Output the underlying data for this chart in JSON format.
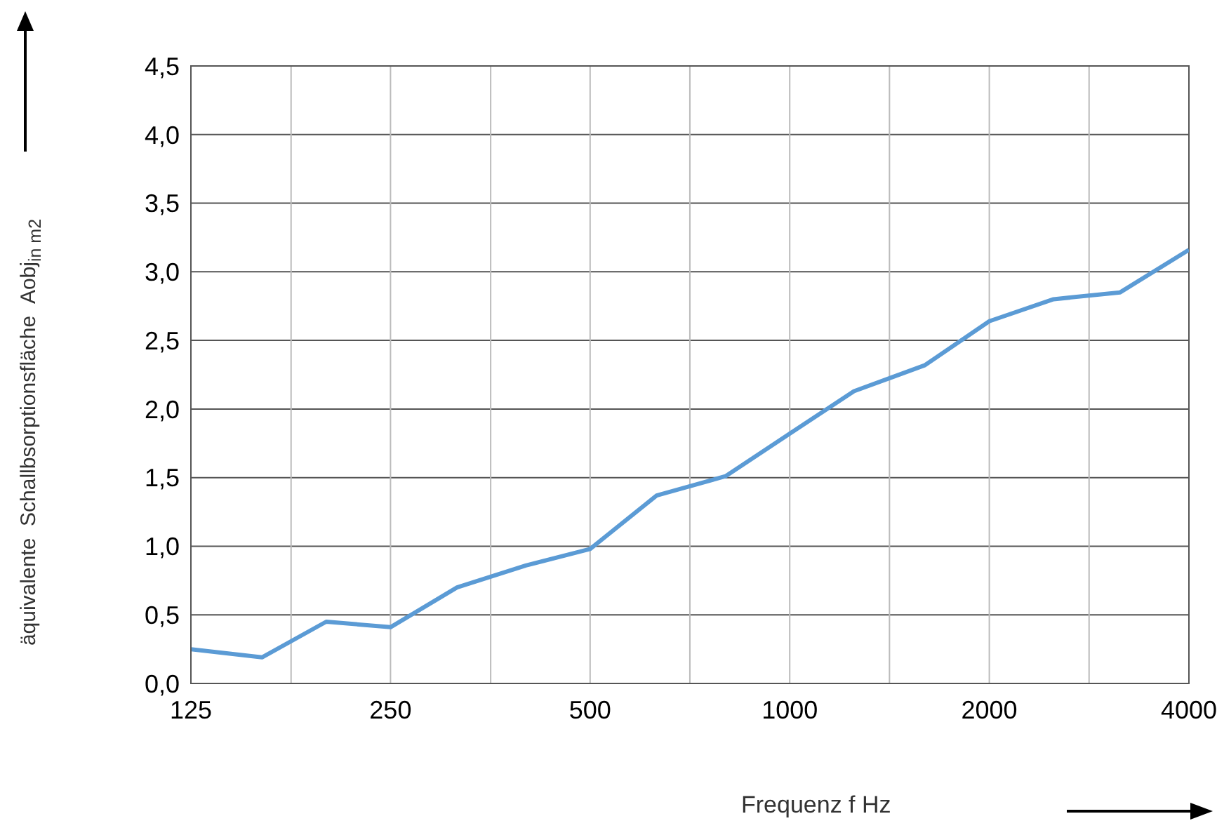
{
  "chart_data": {
    "type": "line",
    "xlabel": "Frequenz f Hz",
    "ylabel": "äquivalente  Schallbsorptionsfläche  Aobj$_{in m2}$",
    "x": [
      125,
      160,
      200,
      250,
      315,
      400,
      500,
      630,
      800,
      1000,
      1250,
      1600,
      2000,
      2500,
      3150,
      4000
    ],
    "series": [
      {
        "color": "#5b9bd5",
        "values": [
          0.25,
          0.19,
          0.45,
          0.41,
          0.7,
          0.86,
          0.98,
          1.37,
          1.51,
          1.82,
          2.13,
          2.32,
          2.64,
          2.8,
          2.85,
          3.16
        ]
      }
    ],
    "log": "x",
    "xlim": [
      125,
      4000
    ],
    "xticks": [
      125,
      {
        "value": 177,
        "label": null
      },
      250,
      {
        "value": 354,
        "label": null
      },
      500,
      {
        "value": 707,
        "label": null
      },
      1000,
      {
        "value": 1414,
        "label": null
      },
      2000,
      {
        "value": 2828,
        "label": null
      },
      4000
    ],
    "ylim": [
      0,
      4.5
    ],
    "yticks": [
      {
        "value": 0,
        "label": "0,0"
      },
      {
        "value": 0.5,
        "label": "0,5"
      },
      {
        "value": 1,
        "label": "1,0"
      },
      {
        "value": 1.5,
        "label": "1,5"
      },
      {
        "value": 2,
        "label": "2,0"
      },
      {
        "value": 2.5,
        "label": "2,5"
      },
      {
        "value": 3,
        "label": "3,0"
      },
      {
        "value": 3.5,
        "label": "3,5"
      },
      {
        "value": 4,
        "label": "4,0"
      },
      {
        "value": 4.5,
        "label": "4,5"
      }
    ],
    "grid": true,
    "marker": "none",
    "line_style": "solid"
  }
}
